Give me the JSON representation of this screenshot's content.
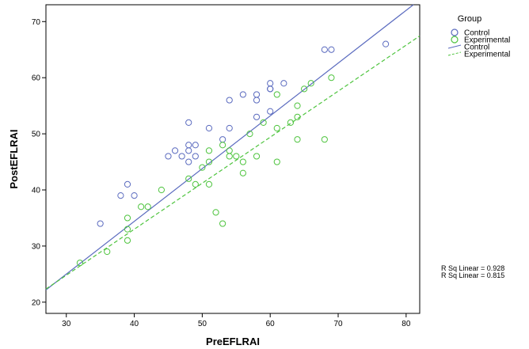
{
  "chart_data": {
    "type": "scatter",
    "xlabel": "PreEFLRAI",
    "ylabel": "PostEFLRAI",
    "xlim": [
      27,
      82
    ],
    "ylim": [
      18,
      73
    ],
    "xticks": [
      30,
      40,
      50,
      60,
      70,
      80
    ],
    "yticks": [
      20,
      30,
      40,
      50,
      60,
      70
    ],
    "grid": false,
    "legend": {
      "title": "Group",
      "position": "right",
      "entries": [
        {
          "label": "Control",
          "kind": "marker",
          "series": 0
        },
        {
          "label": "Experimental",
          "kind": "marker",
          "series": 1
        },
        {
          "label": "Control",
          "kind": "line",
          "series": 0
        },
        {
          "label": "Experimental",
          "kind": "line",
          "series": 1
        }
      ]
    },
    "rsq_labels": [
      "R Sq Linear = 0.928",
      "R Sq Linear = 0.815"
    ],
    "series": [
      {
        "name": "Control",
        "color": "#5b6bbf",
        "fit": {
          "slope": 0.94,
          "intercept": -3.2,
          "style": "solid"
        },
        "points": [
          [
            35,
            34
          ],
          [
            38,
            39
          ],
          [
            39,
            41
          ],
          [
            40,
            39
          ],
          [
            45,
            46
          ],
          [
            46,
            47
          ],
          [
            47,
            46
          ],
          [
            48,
            52
          ],
          [
            48,
            48
          ],
          [
            48,
            47
          ],
          [
            48,
            45
          ],
          [
            49,
            48
          ],
          [
            49,
            46
          ],
          [
            51,
            51
          ],
          [
            53,
            49
          ],
          [
            54,
            56
          ],
          [
            54,
            51
          ],
          [
            56,
            57
          ],
          [
            58,
            57
          ],
          [
            58,
            56
          ],
          [
            58,
            53
          ],
          [
            60,
            59
          ],
          [
            60,
            58
          ],
          [
            60,
            58
          ],
          [
            60,
            54
          ],
          [
            62,
            59
          ],
          [
            68,
            65
          ],
          [
            69,
            65
          ],
          [
            77,
            66
          ]
        ]
      },
      {
        "name": "Experimental",
        "color": "#4ec43e",
        "fit": {
          "slope": 0.82,
          "intercept": 0.2,
          "style": "dashed"
        },
        "points": [
          [
            32,
            27
          ],
          [
            36,
            29
          ],
          [
            39,
            35
          ],
          [
            39,
            33
          ],
          [
            39,
            31
          ],
          [
            41,
            37
          ],
          [
            42,
            37
          ],
          [
            44,
            40
          ],
          [
            48,
            42
          ],
          [
            49,
            41
          ],
          [
            50,
            44
          ],
          [
            51,
            47
          ],
          [
            51,
            45
          ],
          [
            51,
            41
          ],
          [
            52,
            36
          ],
          [
            53,
            48
          ],
          [
            53,
            34
          ],
          [
            54,
            47
          ],
          [
            54,
            46
          ],
          [
            55,
            46
          ],
          [
            56,
            45
          ],
          [
            56,
            43
          ],
          [
            57,
            50
          ],
          [
            58,
            46
          ],
          [
            59,
            52
          ],
          [
            61,
            57
          ],
          [
            61,
            51
          ],
          [
            61,
            45
          ],
          [
            63,
            52
          ],
          [
            64,
            55
          ],
          [
            64,
            53
          ],
          [
            64,
            49
          ],
          [
            65,
            58
          ],
          [
            66,
            59
          ],
          [
            68,
            49
          ],
          [
            69,
            60
          ]
        ]
      }
    ]
  }
}
